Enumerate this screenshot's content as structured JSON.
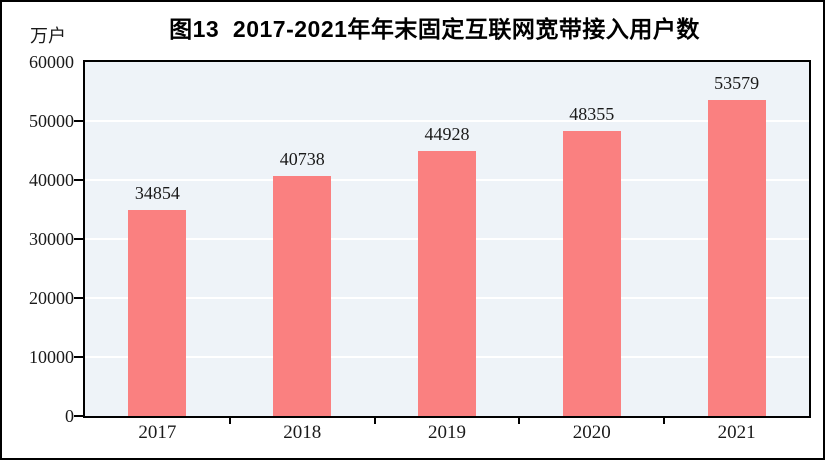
{
  "figure": {
    "title": "图13  2017-2021年年末固定互联网宽带接入用户数",
    "unit_label": "万户"
  },
  "chart_data": {
    "type": "bar",
    "title": "图13  2017-2021年年末固定互联网宽带接入用户数",
    "unit": "万户",
    "categories": [
      "2017",
      "2018",
      "2019",
      "2020",
      "2021"
    ],
    "values": [
      34854,
      40738,
      44928,
      48355,
      53579
    ],
    "value_labels": [
      "34854",
      "40738",
      "44928",
      "48355",
      "53579"
    ],
    "xlabel": "",
    "ylabel": "万户",
    "ylim": [
      0,
      60000
    ],
    "ytick_step": 10000,
    "yticks": [
      0,
      10000,
      20000,
      30000,
      40000,
      50000,
      60000
    ],
    "grid": true,
    "legend": "none",
    "colors": {
      "bar": "#FA8080",
      "plot_background": "#EEF3F8",
      "gridline": "#FFFFFF",
      "axis": "#000000",
      "text": "#1A1A1A"
    }
  }
}
